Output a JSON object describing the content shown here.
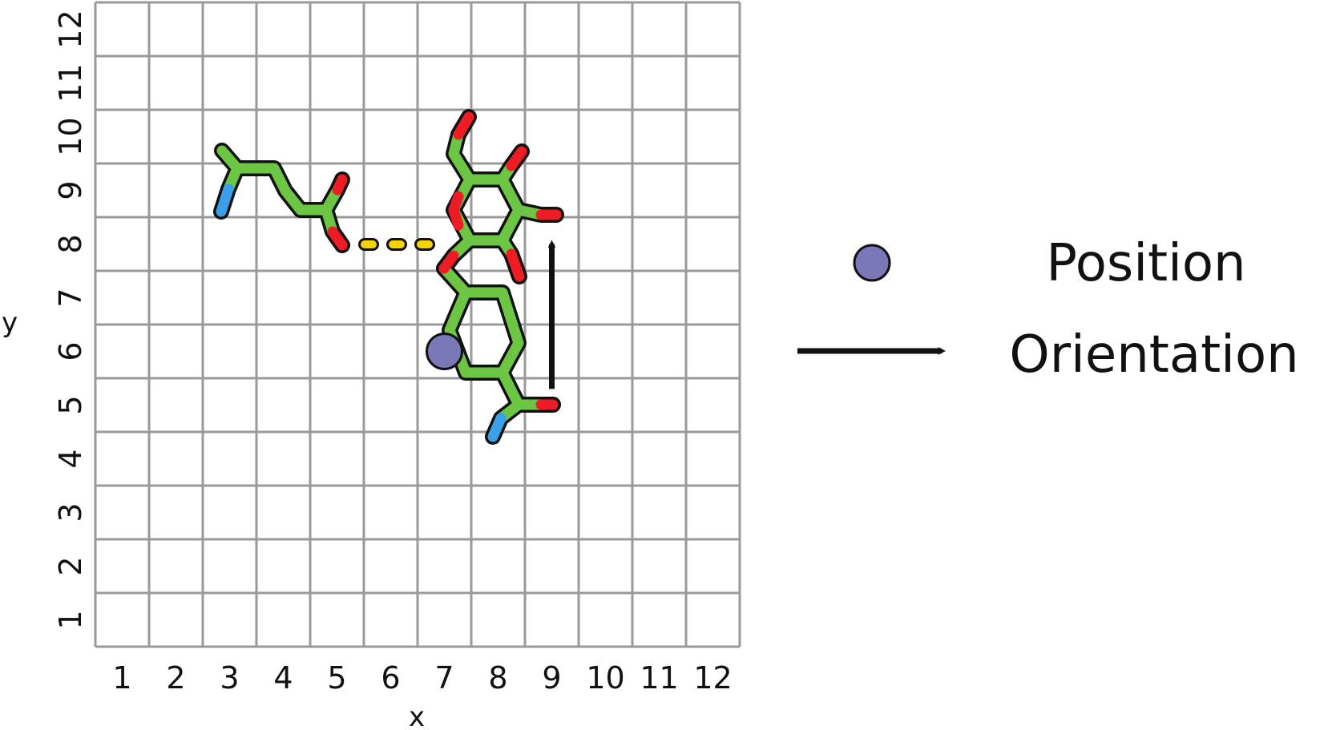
{
  "axes": {
    "x_label": "x",
    "y_label": "y",
    "x_ticks": [
      "1",
      "2",
      "3",
      "4",
      "5",
      "6",
      "7",
      "8",
      "9",
      "10",
      "11",
      "12"
    ],
    "y_ticks": [
      "1",
      "2",
      "3",
      "4",
      "5",
      "6",
      "7",
      "8",
      "9",
      "10",
      "11",
      "12"
    ]
  },
  "molecules": {
    "colors": {
      "carbon": "#6cc644",
      "oxygen": "#ee1c25",
      "nitrogen": "#3aa0ea",
      "hbond": "#f6d400",
      "outline": "#111111"
    }
  },
  "markers": {
    "position_point": {
      "x": 7.0,
      "y": 6.0,
      "color": "#7b78b8"
    },
    "orientation_arrow": {
      "x": 9.0,
      "y_from": 5.3,
      "y_to": 8.0
    }
  },
  "legend": {
    "position_label": "Position",
    "orientation_label": "Orientation",
    "marker_color": "#7b78b8"
  }
}
